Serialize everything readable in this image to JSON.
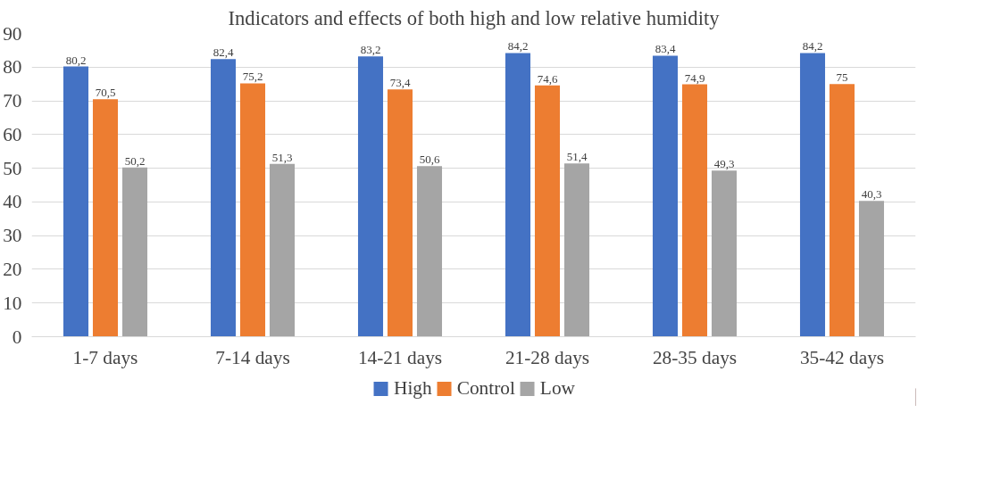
{
  "chart_data": {
    "type": "bar",
    "title": "Indicators and effects of both high and low relative humidity",
    "categories": [
      "1-7 days",
      "7-14 days",
      "14-21 days",
      "21-28 days",
      "28-35 days",
      "35-42 days"
    ],
    "series": [
      {
        "name": "High",
        "color": "#4472c4",
        "values": [
          80.2,
          82.4,
          83.2,
          84.2,
          83.4,
          84.2
        ],
        "value_labels": [
          "80,2",
          "82,4",
          "83,2",
          "84,2",
          "83,4",
          "84,2"
        ]
      },
      {
        "name": "Control",
        "color": "#ed7d31",
        "values": [
          70.5,
          75.2,
          73.4,
          74.6,
          74.9,
          75
        ],
        "value_labels": [
          "70,5",
          "75,2",
          "73,4",
          "74,6",
          "74,9",
          "75"
        ]
      },
      {
        "name": "Low",
        "color": "#a5a5a5",
        "values": [
          50.2,
          51.3,
          50.6,
          51.4,
          49.3,
          40.3
        ],
        "value_labels": [
          "50,2",
          "51,3",
          "50,6",
          "51,4",
          "49,3",
          "40,3"
        ]
      }
    ],
    "ylim": [
      0,
      90
    ],
    "yticks": [
      0,
      10,
      20,
      30,
      40,
      50,
      60,
      70,
      80,
      90
    ],
    "grid": "y",
    "legend": "bottom"
  }
}
